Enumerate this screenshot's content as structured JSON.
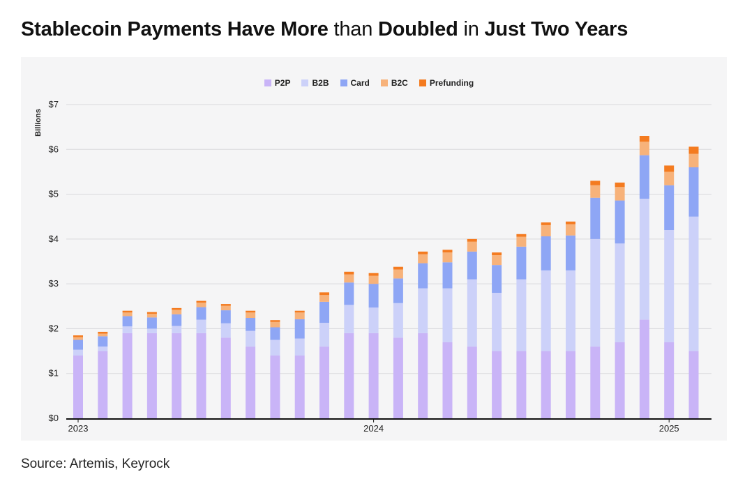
{
  "title_parts": [
    {
      "text": "Stablecoin Payments Have More",
      "bold": true
    },
    {
      "text": " than ",
      "bold": false
    },
    {
      "text": "Doubled",
      "bold": true
    },
    {
      "text": " in ",
      "bold": false
    },
    {
      "text": "Just Two Years",
      "bold": true
    }
  ],
  "source": "Source: Artemis, Keyrock",
  "chart_data": {
    "type": "bar",
    "stacked": true,
    "title": "Stablecoin Payments Have More than Doubled in Just Two Years",
    "ylabel": "Billions",
    "ylim": [
      0,
      7
    ],
    "yticks": [
      "$0",
      "$1",
      "$2",
      "$3",
      "$4",
      "$5",
      "$6",
      "$7"
    ],
    "grid": true,
    "legend_position": "top-center",
    "x_tick_labels": [
      {
        "label": "2023",
        "index": 0
      },
      {
        "label": "2024",
        "index": 12
      },
      {
        "label": "2025",
        "index": 24
      }
    ],
    "categories": [
      "2023-01",
      "2023-02",
      "2023-03",
      "2023-04",
      "2023-05",
      "2023-06",
      "2023-07",
      "2023-08",
      "2023-09",
      "2023-10",
      "2023-11",
      "2023-12",
      "2024-01",
      "2024-02",
      "2024-03",
      "2024-04",
      "2024-05",
      "2024-06",
      "2024-07",
      "2024-08",
      "2024-09",
      "2024-10",
      "2024-11",
      "2024-12",
      "2025-01",
      "2025-02"
    ],
    "series": [
      {
        "name": "P2P",
        "color": "#c9b4f7",
        "values": [
          1.4,
          1.5,
          1.9,
          1.9,
          1.9,
          1.9,
          1.8,
          1.6,
          1.4,
          1.4,
          1.6,
          1.9,
          1.9,
          1.8,
          1.9,
          1.7,
          1.6,
          1.5,
          1.5,
          1.5,
          1.5,
          1.6,
          1.7,
          2.2,
          1.7,
          1.5
        ]
      },
      {
        "name": "B2B",
        "color": "#ccd1f9",
        "values": [
          0.13,
          0.1,
          0.15,
          0.1,
          0.16,
          0.3,
          0.32,
          0.35,
          0.35,
          0.38,
          0.53,
          0.63,
          0.57,
          0.77,
          1.0,
          1.2,
          1.5,
          1.3,
          1.6,
          1.8,
          1.8,
          2.4,
          2.2,
          2.7,
          2.5,
          3.0
        ]
      },
      {
        "name": "Card",
        "color": "#8ea6f5",
        "values": [
          0.22,
          0.23,
          0.23,
          0.25,
          0.26,
          0.28,
          0.29,
          0.29,
          0.28,
          0.43,
          0.47,
          0.5,
          0.53,
          0.55,
          0.56,
          0.58,
          0.62,
          0.62,
          0.73,
          0.76,
          0.78,
          0.92,
          0.96,
          0.97,
          1.0,
          1.1
        ]
      },
      {
        "name": "B2C",
        "color": "#f7b27a",
        "values": [
          0.06,
          0.06,
          0.08,
          0.08,
          0.1,
          0.1,
          0.1,
          0.12,
          0.12,
          0.15,
          0.15,
          0.18,
          0.18,
          0.2,
          0.2,
          0.22,
          0.22,
          0.22,
          0.22,
          0.25,
          0.25,
          0.28,
          0.3,
          0.3,
          0.3,
          0.3
        ]
      },
      {
        "name": "Prefunding",
        "color": "#f47b20",
        "values": [
          0.04,
          0.04,
          0.04,
          0.04,
          0.04,
          0.04,
          0.04,
          0.04,
          0.04,
          0.04,
          0.06,
          0.06,
          0.06,
          0.06,
          0.06,
          0.06,
          0.06,
          0.06,
          0.06,
          0.06,
          0.06,
          0.1,
          0.1,
          0.13,
          0.14,
          0.16
        ]
      }
    ]
  }
}
